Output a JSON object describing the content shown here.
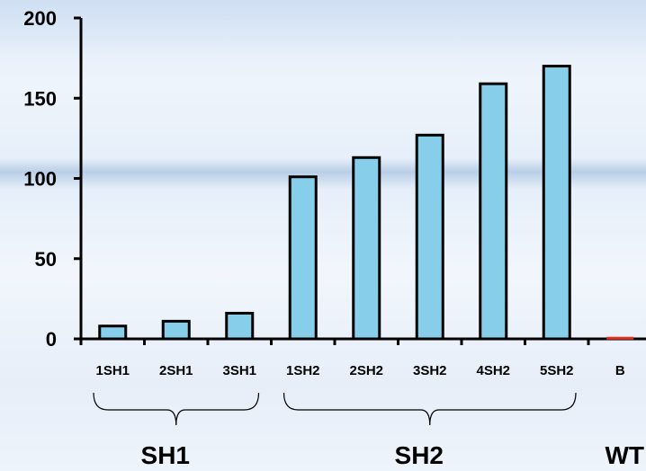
{
  "chart_data": {
    "type": "bar",
    "categories": [
      "1SH1",
      "2SH1",
      "3SH1",
      "1SH2",
      "2SH2",
      "3SH2",
      "4SH2",
      "5SH2",
      "B"
    ],
    "values": [
      8,
      11,
      16,
      101,
      113,
      127,
      159,
      170,
      1
    ],
    "bar_colors": [
      "#87ceeb",
      "#87ceeb",
      "#87ceeb",
      "#87ceeb",
      "#87ceeb",
      "#87ceeb",
      "#87ceeb",
      "#87ceeb",
      "#e03020"
    ],
    "title": "",
    "xlabel": "",
    "ylabel": "",
    "ylim": [
      0,
      200
    ],
    "yticks": [
      "0",
      "50",
      "100",
      "150",
      "200"
    ],
    "grid": false,
    "groups": [
      {
        "label": "SH1",
        "from": 0,
        "to": 2
      },
      {
        "label": "SH2",
        "from": 3,
        "to": 7
      },
      {
        "label": "WT",
        "from": 8,
        "to": 8
      }
    ]
  }
}
